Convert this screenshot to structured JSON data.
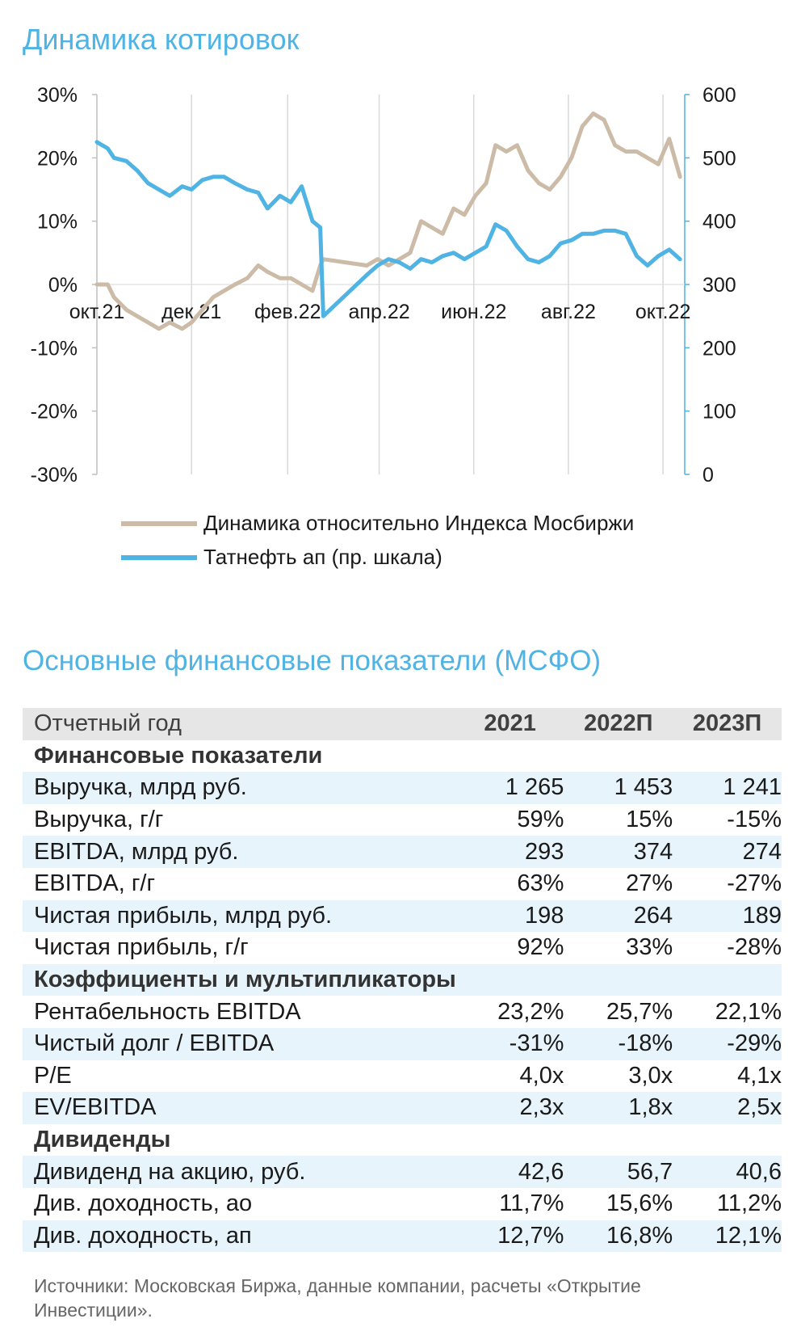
{
  "chart_title": "Динамика котировок",
  "table_title": "Основные финансовые показатели (МСФО)",
  "colors": {
    "title": "#4fb3e4",
    "series_relative": "#cbbba7",
    "series_price": "#4fb3e4",
    "row_shade": "#e7f4fb",
    "header_bg": "#e6e6e6"
  },
  "chart_data": {
    "type": "line",
    "title": "Динамика котировок",
    "x_ticks": [
      "окт.21",
      "дек.21",
      "фев.22",
      "апр.22",
      "июн.22",
      "авг.22",
      "окт.22"
    ],
    "y_left_ticks": [
      "30%",
      "20%",
      "10%",
      "0%",
      "-10%",
      "-20%",
      "-30%"
    ],
    "y_left_lim": [
      -30,
      30
    ],
    "y_right_ticks": [
      "600",
      "500",
      "400",
      "300",
      "200",
      "100",
      "0"
    ],
    "y_right_lim": [
      0,
      600
    ],
    "legend_position": "bottom",
    "series": [
      {
        "name": "Динамика относительно Индекса Мосбиржи",
        "axis": "left",
        "x": [
          "2021-10-01",
          "2021-10-08",
          "2021-10-12",
          "2021-10-20",
          "2021-10-27",
          "2021-11-03",
          "2021-11-10",
          "2021-11-17",
          "2021-11-25",
          "2021-12-01",
          "2021-12-08",
          "2021-12-15",
          "2021-12-22",
          "2021-12-29",
          "2022-01-06",
          "2022-01-13",
          "2022-01-19",
          "2022-01-27",
          "2022-02-03",
          "2022-02-10",
          "2022-02-17",
          "2022-02-22",
          "2022-02-24",
          "2022-03-24",
          "2022-03-31",
          "2022-04-07",
          "2022-04-14",
          "2022-04-21",
          "2022-04-28",
          "2022-05-05",
          "2022-05-12",
          "2022-05-19",
          "2022-05-26",
          "2022-06-02",
          "2022-06-09",
          "2022-06-15",
          "2022-06-22",
          "2022-06-29",
          "2022-07-06",
          "2022-07-13",
          "2022-07-20",
          "2022-07-27",
          "2022-08-03",
          "2022-08-10",
          "2022-08-17",
          "2022-08-24",
          "2022-08-31",
          "2022-09-07",
          "2022-09-14",
          "2022-09-21",
          "2022-09-28",
          "2022-10-05",
          "2022-10-12"
        ],
        "values": [
          0,
          0,
          -2,
          -4,
          -5,
          -6,
          -7,
          -6,
          -7,
          -6,
          -4,
          -2,
          -1,
          0,
          1,
          3,
          2,
          1,
          1,
          0,
          -1,
          3,
          4,
          3,
          4,
          3,
          4,
          5,
          10,
          9,
          8,
          12,
          11,
          14,
          16,
          22,
          21,
          22,
          18,
          16,
          15,
          17,
          20,
          25,
          27,
          26,
          22,
          21,
          21,
          20,
          19,
          23,
          17
        ],
        "markers": []
      },
      {
        "name": "Татнефть ап (пр. шкала)",
        "axis": "right",
        "x": [
          "2021-10-01",
          "2021-10-08",
          "2021-10-12",
          "2021-10-20",
          "2021-10-27",
          "2021-11-03",
          "2021-11-10",
          "2021-11-17",
          "2021-11-25",
          "2021-12-01",
          "2021-12-08",
          "2021-12-15",
          "2021-12-22",
          "2021-12-29",
          "2022-01-06",
          "2022-01-13",
          "2022-01-19",
          "2022-01-27",
          "2022-02-03",
          "2022-02-10",
          "2022-02-17",
          "2022-02-22",
          "2022-02-24",
          "2022-03-24",
          "2022-03-31",
          "2022-04-07",
          "2022-04-14",
          "2022-04-21",
          "2022-04-28",
          "2022-05-05",
          "2022-05-12",
          "2022-05-19",
          "2022-05-26",
          "2022-06-02",
          "2022-06-09",
          "2022-06-15",
          "2022-06-22",
          "2022-06-29",
          "2022-07-06",
          "2022-07-13",
          "2022-07-20",
          "2022-07-27",
          "2022-08-03",
          "2022-08-10",
          "2022-08-17",
          "2022-08-24",
          "2022-08-31",
          "2022-09-07",
          "2022-09-14",
          "2022-09-21",
          "2022-09-28",
          "2022-10-05",
          "2022-10-12"
        ],
        "values": [
          525,
          515,
          500,
          495,
          480,
          460,
          450,
          440,
          455,
          450,
          465,
          470,
          470,
          460,
          450,
          445,
          420,
          440,
          430,
          455,
          400,
          390,
          250,
          315,
          330,
          340,
          335,
          325,
          340,
          335,
          345,
          350,
          340,
          350,
          360,
          395,
          385,
          360,
          340,
          335,
          345,
          365,
          370,
          380,
          380,
          385,
          385,
          380,
          345,
          330,
          345,
          355,
          340
        ],
        "markers": []
      }
    ]
  },
  "table": {
    "header": {
      "label": "Отчетный год",
      "years": [
        "2021",
        "2022П",
        "2023П"
      ]
    },
    "rows": [
      {
        "label": "Финансовые показатели",
        "section": true,
        "shade": false,
        "values": []
      },
      {
        "label": "Выручка, млрд руб.",
        "section": false,
        "shade": true,
        "values": [
          "1 265",
          "1 453",
          "1 241"
        ]
      },
      {
        "label": "Выручка, г/г",
        "section": false,
        "shade": false,
        "values": [
          "59%",
          "15%",
          "-15%"
        ]
      },
      {
        "label": "EBITDA, млрд руб.",
        "section": false,
        "shade": true,
        "values": [
          "293",
          "374",
          "274"
        ]
      },
      {
        "label": "EBITDA, г/г",
        "section": false,
        "shade": false,
        "values": [
          "63%",
          "27%",
          "-27%"
        ]
      },
      {
        "label": "Чистая прибыль, млрд руб.",
        "section": false,
        "shade": true,
        "values": [
          "198",
          "264",
          "189"
        ]
      },
      {
        "label": "Чистая прибыль, г/г",
        "section": false,
        "shade": false,
        "values": [
          "92%",
          "33%",
          "-28%"
        ]
      },
      {
        "label": "Коэффициенты и мультипликаторы",
        "section": true,
        "shade": true,
        "values": []
      },
      {
        "label": "Рентабельность EBITDA",
        "section": false,
        "shade": false,
        "values": [
          "23,2%",
          "25,7%",
          "22,1%"
        ]
      },
      {
        "label": "Чистый долг / EBITDA",
        "section": false,
        "shade": true,
        "values": [
          "-31%",
          "-18%",
          "-29%"
        ]
      },
      {
        "label": "P/E",
        "section": false,
        "shade": false,
        "values": [
          "4,0x",
          "3,0x",
          "4,1x"
        ]
      },
      {
        "label": "EV/EBITDA",
        "section": false,
        "shade": true,
        "values": [
          "2,3x",
          "1,8x",
          "2,5x"
        ]
      },
      {
        "label": "Дивиденды",
        "section": true,
        "shade": false,
        "values": []
      },
      {
        "label": "Дивиденд на акцию, руб.",
        "section": false,
        "shade": true,
        "values": [
          "42,6",
          "56,7",
          "40,6"
        ]
      },
      {
        "label": "Див. доходность, ао",
        "section": false,
        "shade": false,
        "values": [
          "11,7%",
          "15,6%",
          "11,2%"
        ]
      },
      {
        "label": "Див. доходность, ап",
        "section": false,
        "shade": true,
        "values": [
          "12,7%",
          "16,8%",
          "12,1%"
        ]
      }
    ]
  },
  "source": "Источники: Московская Биржа, данные компании, расчеты «Открытие Инвестиции»."
}
